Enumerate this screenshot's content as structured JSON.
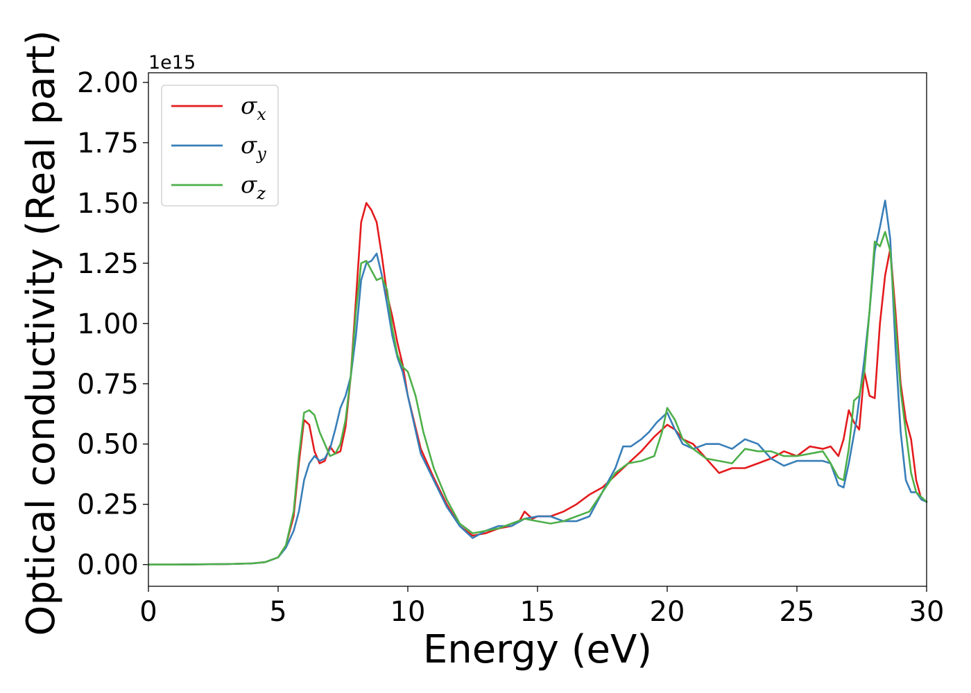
{
  "chart_data": {
    "type": "line",
    "xlabel": "Energy (eV)",
    "ylabel": "Optical conductivity (Real part)",
    "y_offset_text": "1e15",
    "y_scale": 1000000000000000.0,
    "xlim": [
      0,
      30
    ],
    "ylim": [
      -0.09,
      2.04
    ],
    "xticks": [
      "0",
      "5",
      "10",
      "15",
      "20",
      "25",
      "30"
    ],
    "yticks": [
      "0.00",
      "0.25",
      "0.50",
      "0.75",
      "1.00",
      "1.25",
      "1.50",
      "1.75",
      "2.00"
    ],
    "grid": false,
    "legend_position": "top-left",
    "series": [
      {
        "name": "σ",
        "sub": "x",
        "color": "#e41a1c",
        "x": [
          0,
          1,
          2,
          3,
          4,
          4.5,
          5,
          5.3,
          5.6,
          5.8,
          6.0,
          6.2,
          6.4,
          6.6,
          6.8,
          7.0,
          7.2,
          7.4,
          7.6,
          7.8,
          8.0,
          8.2,
          8.4,
          8.6,
          8.8,
          9.0,
          9.2,
          9.4,
          9.6,
          9.8,
          10,
          10.5,
          11,
          11.5,
          12,
          12.5,
          13,
          13.5,
          14,
          14.3,
          14.5,
          14.8,
          15,
          15.5,
          16,
          16.5,
          17,
          17.5,
          18,
          18.5,
          19,
          19.5,
          20,
          20.3,
          20.6,
          21,
          21.5,
          22,
          22.5,
          23,
          23.5,
          24,
          24.5,
          25,
          25.5,
          26,
          26.3,
          26.6,
          26.8,
          27,
          27.2,
          27.4,
          27.6,
          27.8,
          28,
          28.2,
          28.4,
          28.6,
          28.8,
          29,
          29.2,
          29.4,
          29.6,
          29.8,
          30
        ],
        "y": [
          0,
          0,
          0.001,
          0.002,
          0.005,
          0.01,
          0.03,
          0.08,
          0.2,
          0.42,
          0.6,
          0.58,
          0.47,
          0.42,
          0.43,
          0.49,
          0.46,
          0.47,
          0.57,
          0.78,
          1.1,
          1.42,
          1.5,
          1.47,
          1.42,
          1.28,
          1.12,
          1.03,
          0.92,
          0.83,
          0.7,
          0.48,
          0.36,
          0.25,
          0.16,
          0.12,
          0.13,
          0.15,
          0.16,
          0.18,
          0.22,
          0.19,
          0.2,
          0.2,
          0.22,
          0.25,
          0.29,
          0.32,
          0.37,
          0.42,
          0.47,
          0.53,
          0.58,
          0.56,
          0.52,
          0.5,
          0.44,
          0.38,
          0.4,
          0.4,
          0.42,
          0.44,
          0.47,
          0.45,
          0.49,
          0.48,
          0.49,
          0.45,
          0.52,
          0.64,
          0.59,
          0.56,
          0.8,
          0.7,
          0.69,
          1.0,
          1.2,
          1.31,
          1.05,
          0.75,
          0.6,
          0.52,
          0.35,
          0.27,
          0.26
        ]
      },
      {
        "name": "σ",
        "sub": "y",
        "color": "#377eb8",
        "x": [
          0,
          1,
          2,
          3,
          4,
          4.5,
          5,
          5.3,
          5.6,
          5.8,
          6.0,
          6.2,
          6.4,
          6.6,
          6.8,
          7.0,
          7.2,
          7.4,
          7.6,
          7.8,
          8.0,
          8.2,
          8.4,
          8.6,
          8.8,
          9.0,
          9.2,
          9.4,
          9.6,
          9.8,
          10,
          10.5,
          11,
          11.5,
          12,
          12.5,
          13,
          13.5,
          14,
          14.5,
          15,
          15.5,
          16,
          16.5,
          17,
          17.5,
          18,
          18.3,
          18.6,
          19,
          19.3,
          19.6,
          20,
          20.3,
          20.6,
          21,
          21.5,
          22,
          22.5,
          23,
          23.5,
          24,
          24.5,
          25,
          25.5,
          26,
          26.3,
          26.6,
          26.8,
          27,
          27.3,
          27.6,
          27.8,
          28,
          28.2,
          28.4,
          28.6,
          28.8,
          29,
          29.2,
          29.4,
          29.6,
          29.8,
          30
        ],
        "y": [
          0,
          0,
          0.001,
          0.002,
          0.005,
          0.01,
          0.03,
          0.07,
          0.14,
          0.22,
          0.35,
          0.42,
          0.45,
          0.43,
          0.44,
          0.48,
          0.56,
          0.65,
          0.7,
          0.78,
          0.95,
          1.18,
          1.25,
          1.26,
          1.29,
          1.2,
          1.08,
          0.95,
          0.86,
          0.8,
          0.7,
          0.46,
          0.35,
          0.24,
          0.16,
          0.11,
          0.14,
          0.16,
          0.16,
          0.19,
          0.2,
          0.2,
          0.18,
          0.18,
          0.2,
          0.3,
          0.4,
          0.49,
          0.49,
          0.52,
          0.55,
          0.59,
          0.63,
          0.56,
          0.5,
          0.48,
          0.5,
          0.5,
          0.48,
          0.52,
          0.5,
          0.44,
          0.41,
          0.43,
          0.43,
          0.43,
          0.42,
          0.33,
          0.32,
          0.42,
          0.6,
          0.85,
          1.05,
          1.3,
          1.4,
          1.51,
          1.35,
          0.9,
          0.55,
          0.35,
          0.3,
          0.3,
          0.27,
          0.26
        ]
      },
      {
        "name": "σ",
        "sub": "z",
        "color": "#4daf4a",
        "x": [
          0,
          1,
          2,
          3,
          4,
          4.5,
          5,
          5.3,
          5.6,
          5.8,
          6.0,
          6.2,
          6.4,
          6.6,
          6.8,
          7.0,
          7.2,
          7.4,
          7.6,
          7.8,
          8.0,
          8.2,
          8.4,
          8.6,
          8.8,
          9.0,
          9.2,
          9.4,
          9.6,
          9.8,
          10,
          10.3,
          10.6,
          11,
          11.5,
          12,
          12.5,
          13,
          13.5,
          14,
          14.5,
          15,
          15.5,
          16,
          16.5,
          17,
          17.5,
          18,
          18.5,
          19,
          19.5,
          19.8,
          20,
          20.3,
          20.6,
          21,
          21.5,
          22,
          22.5,
          23,
          23.5,
          24,
          24.5,
          25,
          25.5,
          26,
          26.3,
          26.6,
          26.8,
          27,
          27.2,
          27.4,
          27.6,
          27.8,
          28,
          28.2,
          28.4,
          28.6,
          28.8,
          29,
          29.2,
          29.4,
          29.6,
          29.8,
          30
        ],
        "y": [
          0,
          0,
          0.001,
          0.002,
          0.005,
          0.01,
          0.03,
          0.08,
          0.22,
          0.45,
          0.63,
          0.64,
          0.62,
          0.55,
          0.5,
          0.45,
          0.46,
          0.5,
          0.6,
          0.78,
          1.05,
          1.25,
          1.26,
          1.22,
          1.18,
          1.19,
          1.14,
          0.98,
          0.87,
          0.82,
          0.8,
          0.7,
          0.55,
          0.4,
          0.27,
          0.17,
          0.13,
          0.14,
          0.15,
          0.17,
          0.19,
          0.18,
          0.17,
          0.18,
          0.2,
          0.22,
          0.3,
          0.38,
          0.42,
          0.43,
          0.45,
          0.55,
          0.65,
          0.6,
          0.52,
          0.48,
          0.44,
          0.43,
          0.42,
          0.48,
          0.47,
          0.47,
          0.45,
          0.45,
          0.46,
          0.47,
          0.42,
          0.36,
          0.35,
          0.48,
          0.68,
          0.7,
          0.8,
          1.05,
          1.34,
          1.32,
          1.38,
          1.3,
          1.0,
          0.72,
          0.55,
          0.38,
          0.3,
          0.28,
          0.26
        ]
      }
    ]
  }
}
